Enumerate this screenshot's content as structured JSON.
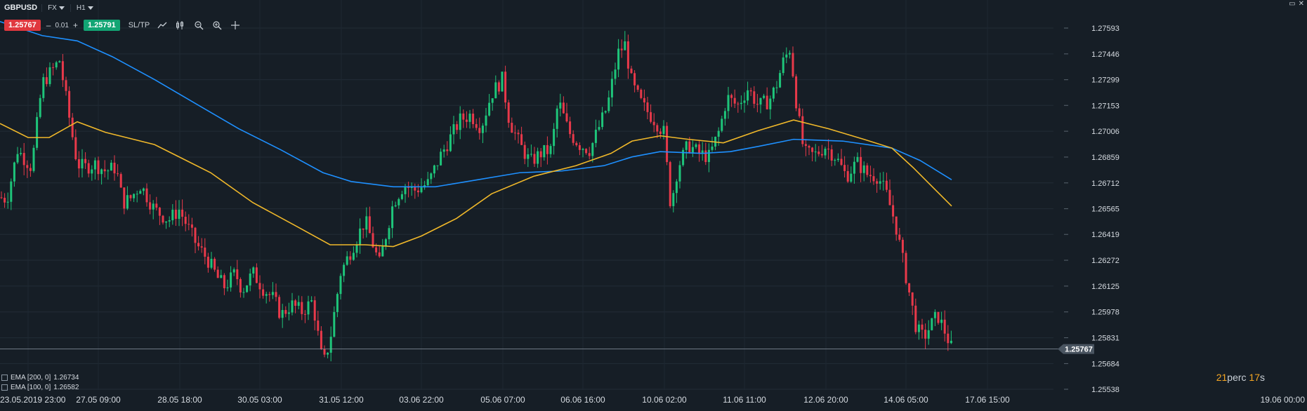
{
  "header": {
    "symbol": "GBPUSD",
    "market": "FX",
    "timeframe": "H1"
  },
  "trade": {
    "sell_price": "1.25767",
    "quantity": "0.01",
    "minus": "–",
    "plus": "+",
    "buy_price": "1.25791",
    "sltp_label": "SL/TP"
  },
  "icons": {
    "line_tool": "line-chart-icon",
    "candle_tool": "candlestick-icon",
    "zoom_out": "zoom-out-icon",
    "zoom_in": "zoom-in-icon",
    "crosshair": "crosshair-icon"
  },
  "window_controls": {
    "restore": "▭",
    "close": "✕"
  },
  "indicators": [
    {
      "label": "EMA [200, 0]",
      "value": "1.26734",
      "color": "#1e90ff"
    },
    {
      "label": "EMA [100, 0]",
      "value": "1.26582",
      "color": "#f0b82a"
    }
  ],
  "timer": {
    "minutes": "21",
    "minutes_unit": "perc",
    "seconds": "17",
    "seconds_unit": "s"
  },
  "colors": {
    "background": "#161e26",
    "up": "#1ec57a",
    "down": "#e8394a",
    "ema200": "#1e90ff",
    "ema100": "#f0b82a",
    "price_line": "#8c97a3"
  },
  "chart_data": {
    "type": "candlestick",
    "title": "GBPUSD",
    "timeframe": "H1",
    "y_ticks": [
      "1.27593",
      "1.27446",
      "1.27299",
      "1.27153",
      "1.27006",
      "1.26859",
      "1.26712",
      "1.26565",
      "1.26419",
      "1.26272",
      "1.26125",
      "1.25978",
      "1.25831",
      "1.25684",
      "1.25538"
    ],
    "ylim": [
      1.25538,
      1.2766
    ],
    "x_ticks": [
      "23.05.2019 23:00",
      "27.05 09:00",
      "28.05 18:00",
      "30.05 03:00",
      "31.05 12:00",
      "03.06 22:00",
      "05.06 07:00",
      "06.06 16:00",
      "10.06 02:00",
      "11.06 11:00",
      "12.06 20:00",
      "14.06 05:00",
      "17.06 15:00",
      "19.06 00:00"
    ],
    "current_price": "1.25767",
    "series": [
      {
        "name": "GBPUSD close (approx. path)",
        "x_index": [
          0,
          10,
          25,
          45,
          60,
          70,
          85,
          100,
          110,
          120,
          135,
          150,
          165,
          175,
          185,
          200,
          220,
          240,
          255,
          265,
          280,
          295,
          310,
          320,
          335,
          345,
          360,
          375,
          390,
          400,
          415,
          430,
          445,
          460,
          470,
          485,
          500,
          520,
          540,
          560,
          575,
          590,
          610,
          625,
          640,
          655,
          670,
          685,
          700,
          715,
          725,
          740,
          755,
          770,
          785,
          795,
          810,
          825,
          840,
          855,
          865,
          880,
          890,
          900,
          915,
          930,
          945,
          955,
          965,
          980,
          995,
          1010,
          1025,
          1035,
          1050,
          1065,
          1080,
          1095,
          1105,
          1115,
          1125,
          1135,
          1145,
          1160,
          1175,
          1190,
          1205,
          1220,
          1235,
          1250,
          1262,
          1275,
          1285,
          1295,
          1305,
          1315,
          1325,
          1335,
          1345,
          1355
        ],
        "close": [
          1.2663,
          1.2662,
          1.269,
          1.268,
          1.2728,
          1.2733,
          1.2741,
          1.2705,
          1.2682,
          1.268,
          1.2682,
          1.2678,
          1.268,
          1.266,
          1.2662,
          1.267,
          1.2656,
          1.265,
          1.2656,
          1.2648,
          1.2636,
          1.2628,
          1.2617,
          1.2612,
          1.262,
          1.261,
          1.262,
          1.2611,
          1.2605,
          1.2596,
          1.2602,
          1.2598,
          1.2604,
          1.2567,
          1.2582,
          1.262,
          1.2633,
          1.265,
          1.2625,
          1.266,
          1.267,
          1.2667,
          1.2671,
          1.2685,
          1.2696,
          1.2707,
          1.271,
          1.2703,
          1.2722,
          1.273,
          1.2707,
          1.2693,
          1.2683,
          1.2688,
          1.269,
          1.2718,
          1.27,
          1.2693,
          1.269,
          1.2705,
          1.2715,
          1.2745,
          1.275,
          1.2727,
          1.2715,
          1.2708,
          1.27,
          1.2658,
          1.268,
          1.2693,
          1.2688,
          1.2686,
          1.2702,
          1.272,
          1.2715,
          1.2725,
          1.2715,
          1.2718,
          1.2726,
          1.274,
          1.2748,
          1.2713,
          1.2688,
          1.2687,
          1.2692,
          1.2686,
          1.2675,
          1.2683,
          1.2676,
          1.2675,
          1.2665,
          1.2648,
          1.2628,
          1.2608,
          1.2588,
          1.2583,
          1.259,
          1.2596,
          1.2587,
          1.2577
        ]
      },
      {
        "name": "EMA [200, 0]",
        "x_index": [
          0,
          60,
          110,
          160,
          220,
          280,
          340,
          400,
          460,
          500,
          560,
          620,
          680,
          740,
          800,
          860,
          900,
          940,
          1000,
          1040,
          1080,
          1130,
          1200,
          1270,
          1310,
          1355
        ],
        "values": [
          1.2763,
          1.2755,
          1.2752,
          1.2743,
          1.273,
          1.2716,
          1.2702,
          1.269,
          1.2677,
          1.2672,
          1.2669,
          1.2669,
          1.2673,
          1.2677,
          1.2678,
          1.2681,
          1.2686,
          1.2689,
          1.2688,
          1.2689,
          1.2692,
          1.2696,
          1.2695,
          1.2691,
          1.2684,
          1.2673
        ]
      },
      {
        "name": "EMA [100, 0]",
        "x_index": [
          0,
          40,
          70,
          110,
          150,
          220,
          300,
          360,
          420,
          470,
          520,
          560,
          600,
          650,
          700,
          760,
          820,
          870,
          900,
          940,
          980,
          1030,
          1080,
          1130,
          1180,
          1230,
          1270,
          1300,
          1330,
          1355
        ],
        "values": [
          1.2705,
          1.2697,
          1.2697,
          1.2706,
          1.27,
          1.2693,
          1.2677,
          1.266,
          1.2647,
          1.2636,
          1.2636,
          1.2635,
          1.2641,
          1.2651,
          1.2665,
          1.2675,
          1.2681,
          1.2688,
          1.2695,
          1.2698,
          1.2696,
          1.2694,
          1.2701,
          1.2707,
          1.2702,
          1.2696,
          1.2691,
          1.268,
          1.2668,
          1.2658
        ]
      }
    ]
  }
}
